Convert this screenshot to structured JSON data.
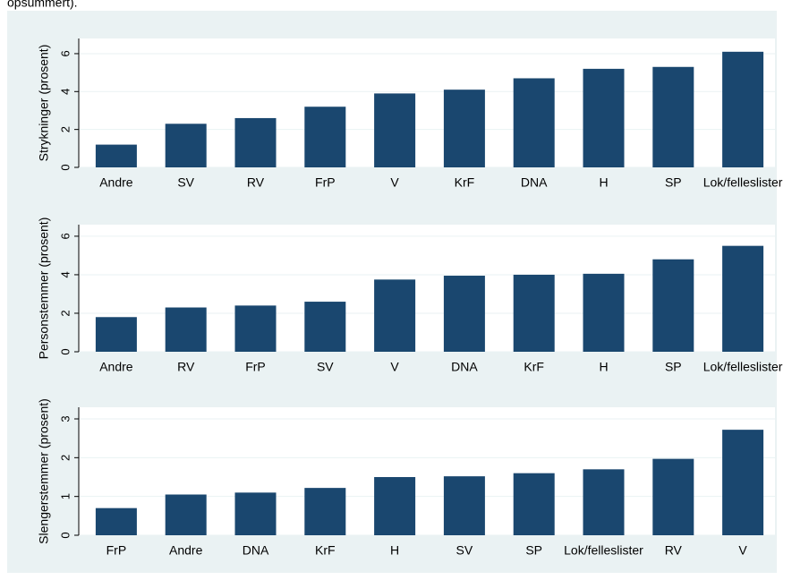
{
  "caption": "opsummert).",
  "chart_data": [
    {
      "type": "bar",
      "y_label": "Strykninger (prosent)",
      "color": "#1a476f",
      "grid": true,
      "categories": [
        "Andre",
        "SV",
        "RV",
        "FrP",
        "V",
        "KrF",
        "DNA",
        "H",
        "SP",
        "Lok/felleslister"
      ],
      "values": [
        1.2,
        2.3,
        2.6,
        3.2,
        3.9,
        4.1,
        4.7,
        5.2,
        5.3,
        6.1
      ],
      "ylim": [
        0,
        6.8
      ],
      "yticks": [
        0,
        2,
        4,
        6
      ]
    },
    {
      "type": "bar",
      "y_label": "Personstemmer (prosent)",
      "color": "#1a476f",
      "grid": true,
      "categories": [
        "Andre",
        "RV",
        "FrP",
        "SV",
        "V",
        "DNA",
        "KrF",
        "H",
        "SP",
        "Lok/felleslister"
      ],
      "values": [
        1.8,
        2.3,
        2.4,
        2.6,
        3.75,
        3.95,
        4.0,
        4.05,
        4.8,
        5.5
      ],
      "ylim": [
        0,
        6.6
      ],
      "yticks": [
        0,
        2,
        4,
        6
      ]
    },
    {
      "type": "bar",
      "y_label": "Slengerstemmer (prosent)",
      "color": "#1a476f",
      "grid": true,
      "categories": [
        "FrP",
        "Andre",
        "DNA",
        "KrF",
        "H",
        "SV",
        "SP",
        "Lok/felleslister",
        "RV",
        "V"
      ],
      "values": [
        0.7,
        1.05,
        1.1,
        1.22,
        1.5,
        1.52,
        1.6,
        1.7,
        1.97,
        2.72
      ],
      "ylim": [
        0,
        3.3
      ],
      "yticks": [
        0,
        1,
        2,
        3
      ]
    }
  ]
}
